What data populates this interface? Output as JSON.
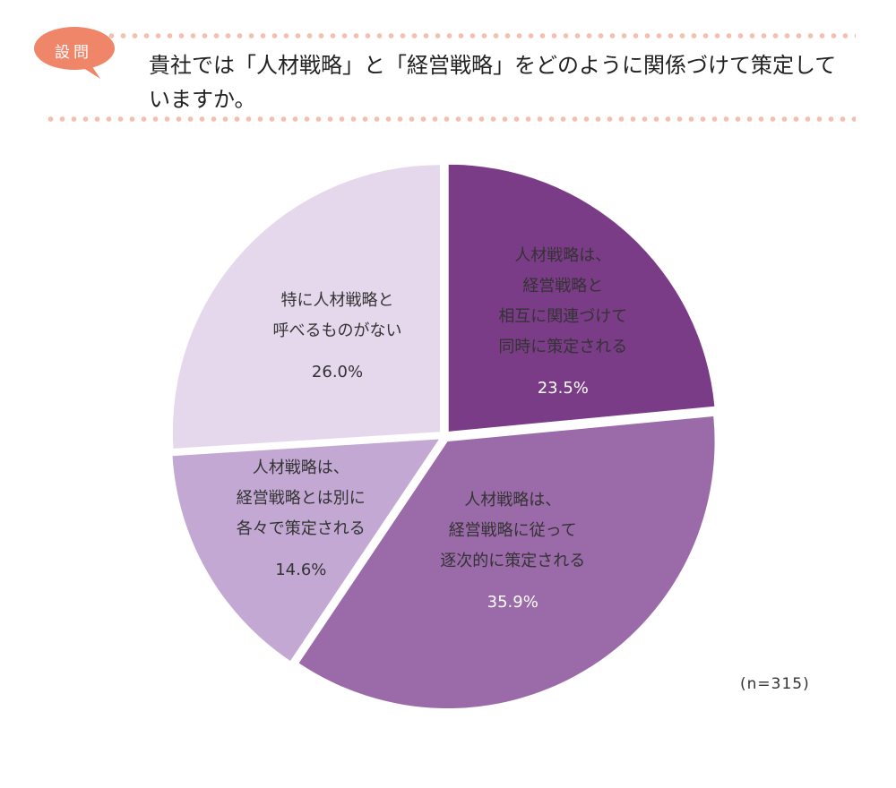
{
  "badge": {
    "label": "設問"
  },
  "question": {
    "text": "貴社では「人材戦略」と「経営戦略」をどのように関係づけて策定していますか。"
  },
  "chart_data": {
    "type": "pie",
    "slices": [
      {
        "lines": [
          "人材戦略は、",
          "経営戦略と",
          "相互に関連づけて",
          "同時に策定される"
        ],
        "pct_label": "23.5%",
        "value": 23.5,
        "color": "#7b3c87",
        "text_color": "#ffffff"
      },
      {
        "lines": [
          "人材戦略は、",
          "経営戦略に従って",
          "逐次的に策定される"
        ],
        "pct_label": "35.9%",
        "value": 35.9,
        "color": "#9b6aa9",
        "text_color": "#ffffff"
      },
      {
        "lines": [
          "人材戦略は、",
          "経営戦略とは別に",
          "各々で策定される"
        ],
        "pct_label": "14.6%",
        "value": 14.6,
        "color": "#c3a8d3",
        "text_color": "#333333"
      },
      {
        "lines": [
          "特に人材戦略と",
          "呼べるものがない"
        ],
        "pct_label": "26.0%",
        "value": 26.0,
        "color": "#e5d8ec",
        "text_color": "#333333"
      }
    ],
    "note": "(n=315)"
  }
}
